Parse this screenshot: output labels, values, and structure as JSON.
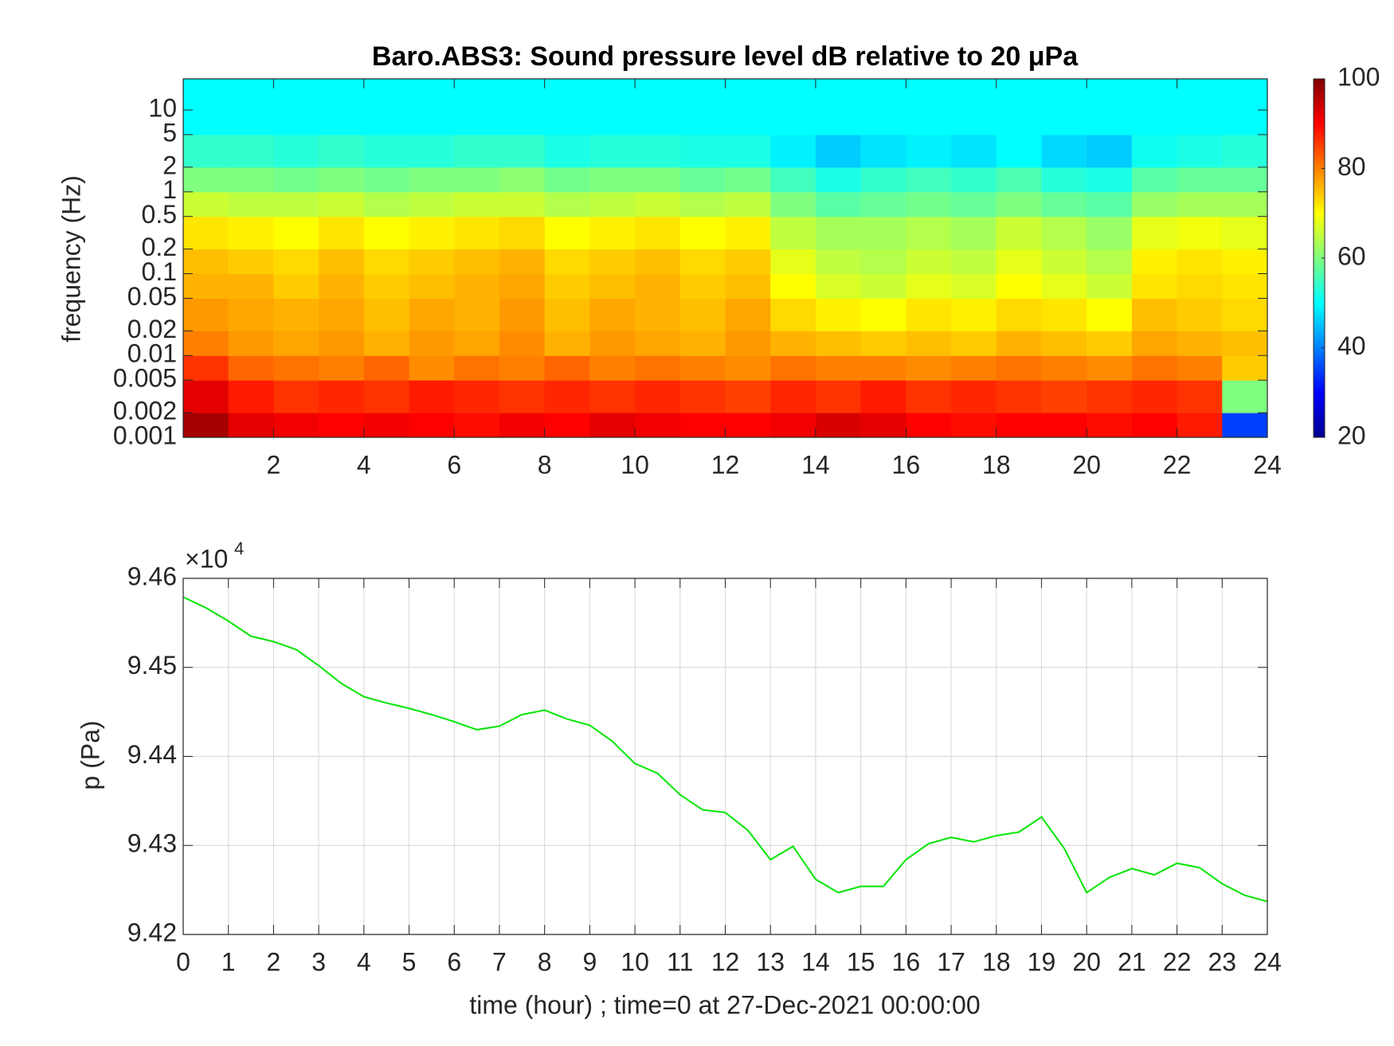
{
  "chart_data": [
    {
      "type": "heatmap",
      "title": "Baro.ABS3: Sound pressure level dB relative to 20 μPa",
      "ylabel": "frequency (Hz)",
      "x": [
        0,
        1,
        2,
        3,
        4,
        5,
        6,
        7,
        8,
        9,
        10,
        11,
        12,
        13,
        14,
        15,
        16,
        17,
        18,
        19,
        20,
        21,
        22,
        23,
        24
      ],
      "y": [
        0.001,
        0.002,
        0.005,
        0.01,
        0.02,
        0.05,
        0.1,
        0.2,
        0.5,
        1,
        2,
        5,
        24
      ],
      "z": [
        [
          97,
          92,
          91,
          90,
          91,
          90,
          89,
          91,
          90,
          92,
          91,
          90,
          90,
          91,
          93,
          92,
          90,
          89,
          90,
          90,
          89,
          90,
          88,
          35
        ],
        [
          92,
          88,
          86,
          87,
          86,
          88,
          87,
          86,
          87,
          86,
          87,
          86,
          85,
          87,
          86,
          88,
          86,
          87,
          86,
          85,
          86,
          87,
          86,
          60
        ],
        [
          86,
          82,
          81,
          80,
          82,
          79,
          81,
          80,
          82,
          80,
          81,
          80,
          79,
          81,
          80,
          80,
          79,
          80,
          81,
          80,
          79,
          81,
          80,
          74
        ],
        [
          80,
          78,
          77,
          78,
          76,
          78,
          77,
          79,
          76,
          78,
          77,
          76,
          78,
          76,
          75,
          74,
          75,
          74,
          76,
          75,
          74,
          77,
          76,
          75
        ],
        [
          78,
          77,
          76,
          77,
          75,
          77,
          76,
          78,
          75,
          77,
          76,
          75,
          77,
          73,
          71,
          70,
          72,
          71,
          73,
          72,
          70,
          75,
          74,
          73
        ],
        [
          76,
          76,
          74,
          76,
          74,
          75,
          76,
          77,
          74,
          75,
          76,
          74,
          75,
          70,
          67,
          66,
          68,
          67,
          70,
          68,
          66,
          72,
          73,
          72
        ],
        [
          75,
          74,
          73,
          75,
          73,
          74,
          75,
          76,
          73,
          74,
          75,
          73,
          74,
          68,
          65,
          64,
          66,
          65,
          68,
          66,
          64,
          71,
          72,
          71
        ],
        [
          72,
          71,
          70,
          72,
          70,
          71,
          72,
          73,
          70,
          71,
          72,
          70,
          71,
          65,
          63,
          63,
          64,
          63,
          66,
          64,
          62,
          68,
          69,
          68
        ],
        [
          66,
          65,
          65,
          66,
          64,
          65,
          66,
          66,
          64,
          65,
          66,
          64,
          65,
          60,
          57,
          58,
          59,
          58,
          60,
          58,
          57,
          62,
          63,
          63
        ],
        [
          60,
          60,
          59,
          60,
          59,
          60,
          60,
          61,
          59,
          60,
          60,
          58,
          59,
          55,
          52,
          54,
          55,
          54,
          56,
          53,
          52,
          57,
          58,
          58
        ],
        [
          54,
          54,
          53,
          54,
          53,
          53,
          54,
          54,
          52,
          53,
          53,
          52,
          52,
          49,
          46,
          48,
          49,
          48,
          50,
          47,
          46,
          51,
          52,
          53
        ],
        [
          50,
          50,
          50,
          50,
          50,
          50,
          50,
          50,
          50,
          50,
          50,
          50,
          50,
          50,
          50,
          50,
          50,
          50,
          50,
          50,
          50,
          50,
          50,
          50
        ]
      ],
      "xlim": [
        0,
        24
      ],
      "xticks": [
        2,
        4,
        6,
        8,
        10,
        12,
        14,
        16,
        18,
        20,
        22,
        24
      ],
      "ylim": [
        0.001,
        24
      ],
      "yscale": "log",
      "yticks": [
        0.001,
        0.002,
        0.005,
        0.01,
        0.02,
        0.05,
        0.1,
        0.2,
        0.5,
        1,
        2,
        5,
        10
      ],
      "colormap": "jet",
      "clim": [
        20,
        100
      ],
      "cticks": [
        20,
        40,
        60,
        80,
        100
      ]
    },
    {
      "type": "line",
      "xlabel": "time (hour) ; time=0 at 27-Dec-2021 00:00:00",
      "ylabel": "p (Pa)",
      "y_exponent": {
        "base": "×10",
        "power": "4"
      },
      "color": "#00e600",
      "x": [
        0,
        0.5,
        1,
        1.5,
        2,
        2.5,
        3,
        3.5,
        4,
        4.5,
        5,
        5.5,
        6,
        6.5,
        7,
        7.5,
        8,
        8.5,
        9,
        9.5,
        10,
        10.5,
        11,
        11.5,
        12,
        12.5,
        13,
        13.5,
        14,
        14.5,
        15,
        15.5,
        16,
        16.5,
        17,
        17.5,
        18,
        18.5,
        19,
        19.5,
        20,
        20.5,
        21,
        21.5,
        22,
        22.5,
        23,
        23.5,
        24
      ],
      "values": [
        94579,
        94567,
        94552,
        94535,
        94529,
        94520,
        94502,
        94482,
        94467,
        94460,
        94454,
        94447,
        94439,
        94430,
        94434,
        94447,
        94452,
        94442,
        94435,
        94417,
        94392,
        94381,
        94357,
        94340,
        94337,
        94317,
        94284,
        94299,
        94262,
        94247,
        94254,
        94254,
        94284,
        94302,
        94309,
        94304,
        94311,
        94315,
        94332,
        94297,
        94247,
        94264,
        94274,
        94267,
        94280,
        94275,
        94257,
        94244,
        94237
      ],
      "xlim": [
        0,
        24
      ],
      "xticks": [
        0,
        1,
        2,
        3,
        4,
        5,
        6,
        7,
        8,
        9,
        10,
        11,
        12,
        13,
        14,
        15,
        16,
        17,
        18,
        19,
        20,
        21,
        22,
        23,
        24
      ],
      "ylim": [
        94200,
        94600
      ],
      "yticks": [
        {
          "value": 94200,
          "label": "9.42"
        },
        {
          "value": 94300,
          "label": "9.43"
        },
        {
          "value": 94400,
          "label": "9.44"
        },
        {
          "value": 94500,
          "label": "9.45"
        },
        {
          "value": 94600,
          "label": "9.46"
        }
      ],
      "grid": true
    }
  ]
}
